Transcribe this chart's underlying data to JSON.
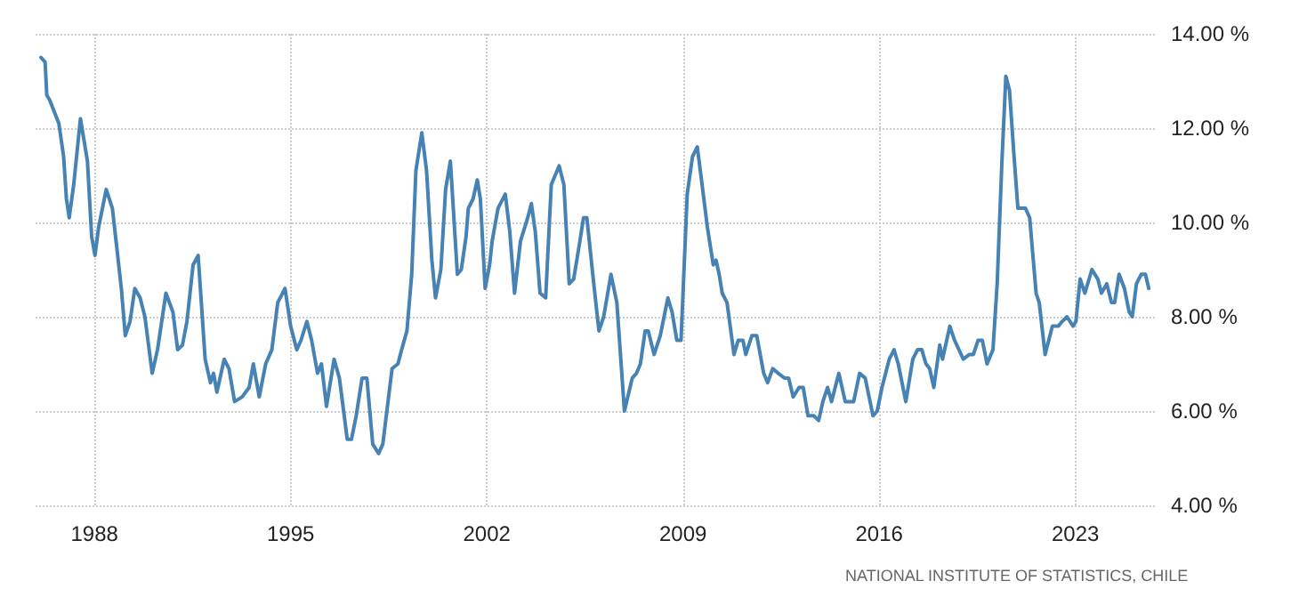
{
  "chart_data": {
    "type": "line",
    "x": [
      1986.09,
      1986.24,
      1986.3,
      1986.4,
      1986.73,
      1986.9,
      1987.0,
      1987.1,
      1987.26,
      1987.5,
      1987.75,
      1987.9,
      1988.02,
      1988.15,
      1988.42,
      1988.64,
      1988.96,
      1989.1,
      1989.27,
      1989.44,
      1989.63,
      1989.8,
      1990.06,
      1990.25,
      1990.55,
      1990.8,
      1990.97,
      1991.14,
      1991.3,
      1991.52,
      1991.7,
      1991.95,
      1992.14,
      1992.25,
      1992.37,
      1992.63,
      1992.8,
      1993.0,
      1993.27,
      1993.52,
      1993.67,
      1993.88,
      1994.11,
      1994.33,
      1994.54,
      1994.8,
      1995.0,
      1995.22,
      1995.37,
      1995.58,
      1995.75,
      1995.96,
      1996.1,
      1996.28,
      1996.55,
      1996.74,
      1997.02,
      1997.17,
      1997.34,
      1997.55,
      1997.72,
      1997.93,
      1998.14,
      1998.29,
      1998.62,
      1998.83,
      1998.96,
      1999.15,
      1999.32,
      1999.47,
      1999.68,
      1999.85,
      2000.04,
      2000.17,
      2000.36,
      2000.53,
      2000.7,
      2000.95,
      2001.09,
      2001.26,
      2001.34,
      2001.51,
      2001.66,
      2001.77,
      2001.94,
      2002.1,
      2002.19,
      2002.4,
      2002.66,
      2002.82,
      2002.99,
      2003.2,
      2003.46,
      2003.59,
      2003.73,
      2003.9,
      2004.1,
      2004.3,
      2004.58,
      2004.75,
      2004.94,
      2005.1,
      2005.32,
      2005.45,
      2005.57,
      2005.78,
      2006.0,
      2006.17,
      2006.43,
      2006.64,
      2006.91,
      2007.19,
      2007.34,
      2007.48,
      2007.65,
      2007.76,
      2007.97,
      2008.19,
      2008.46,
      2008.61,
      2008.78,
      2008.93,
      2009.15,
      2009.34,
      2009.51,
      2009.66,
      2009.87,
      2010.08,
      2010.18,
      2010.29,
      2010.4,
      2010.57,
      2010.82,
      2010.97,
      2011.14,
      2011.24,
      2011.46,
      2011.63,
      2011.88,
      2012.02,
      2012.2,
      2012.4,
      2012.62,
      2012.77,
      2012.93,
      2013.14,
      2013.29,
      2013.46,
      2013.67,
      2013.84,
      2013.99,
      2014.16,
      2014.3,
      2014.56,
      2014.79,
      2015.09,
      2015.3,
      2015.5,
      2015.78,
      2015.93,
      2016.1,
      2016.36,
      2016.53,
      2016.68,
      2016.95,
      2017.2,
      2017.37,
      2017.52,
      2017.67,
      2017.8,
      2017.95,
      2018.16,
      2018.26,
      2018.52,
      2018.69,
      2019.0,
      2019.22,
      2019.36,
      2019.53,
      2019.68,
      2019.85,
      2020.06,
      2020.21,
      2020.38,
      2020.52,
      2020.65,
      2020.8,
      2020.95,
      2021.12,
      2021.22,
      2021.37,
      2021.6,
      2021.71,
      2021.92,
      2022.18,
      2022.39,
      2022.53,
      2022.7,
      2022.92,
      2023.02,
      2023.17,
      2023.34,
      2023.59,
      2023.8,
      2023.93,
      2024.12,
      2024.29,
      2024.4,
      2024.56,
      2024.75,
      2024.92,
      2025.03,
      2025.18,
      2025.35,
      2025.5,
      2025.62
    ],
    "series": [
      {
        "color": "#4682b4",
        "values": [
          13.5,
          13.4,
          12.7,
          12.6,
          12.1,
          11.4,
          10.5,
          10.1,
          10.8,
          12.2,
          11.3,
          9.7,
          9.3,
          9.9,
          10.7,
          10.3,
          8.6,
          7.6,
          7.9,
          8.6,
          8.4,
          8.0,
          6.8,
          7.3,
          8.5,
          8.1,
          7.3,
          7.4,
          7.9,
          9.1,
          9.3,
          7.1,
          6.6,
          6.8,
          6.4,
          7.1,
          6.9,
          6.2,
          6.3,
          6.5,
          7.0,
          6.3,
          7.0,
          7.3,
          8.3,
          8.6,
          7.8,
          7.3,
          7.5,
          7.9,
          7.5,
          6.8,
          7.0,
          6.1,
          7.1,
          6.7,
          5.4,
          5.4,
          5.9,
          6.7,
          6.7,
          5.3,
          5.1,
          5.3,
          6.9,
          7.0,
          7.3,
          7.7,
          8.9,
          11.1,
          11.9,
          11.1,
          9.2,
          8.4,
          9.0,
          10.7,
          11.3,
          8.9,
          9.0,
          9.7,
          10.3,
          10.5,
          10.9,
          10.5,
          8.6,
          9.1,
          9.6,
          10.3,
          10.6,
          9.8,
          8.5,
          9.6,
          10.1,
          10.4,
          9.8,
          8.5,
          8.4,
          10.8,
          11.2,
          10.8,
          8.7,
          8.8,
          9.6,
          10.1,
          10.1,
          8.9,
          7.7,
          8.0,
          8.9,
          8.3,
          6.0,
          6.7,
          6.8,
          7.0,
          7.7,
          7.7,
          7.2,
          7.6,
          8.4,
          8.1,
          7.5,
          7.5,
          10.6,
          11.4,
          11.6,
          10.9,
          9.9,
          9.1,
          9.2,
          8.9,
          8.5,
          8.3,
          7.2,
          7.5,
          7.5,
          7.2,
          7.6,
          7.6,
          6.8,
          6.6,
          6.9,
          6.8,
          6.7,
          6.7,
          6.3,
          6.5,
          6.5,
          5.9,
          5.9,
          5.8,
          6.2,
          6.5,
          6.2,
          6.8,
          6.2,
          6.2,
          6.8,
          6.7,
          5.9,
          6.0,
          6.5,
          7.1,
          7.3,
          7.0,
          6.2,
          7.1,
          7.3,
          7.3,
          7.0,
          6.9,
          6.5,
          7.4,
          7.1,
          7.8,
          7.5,
          7.1,
          7.2,
          7.2,
          7.5,
          7.5,
          7.0,
          7.3,
          8.7,
          11.3,
          13.1,
          12.8,
          11.5,
          10.3,
          10.3,
          10.3,
          10.1,
          8.5,
          8.3,
          7.2,
          7.8,
          7.8,
          7.9,
          8.0,
          7.8,
          7.9,
          8.8,
          8.5,
          9.0,
          8.8,
          8.5,
          8.7,
          8.3,
          8.3,
          8.9,
          8.6,
          8.1,
          8.0,
          8.7,
          8.9,
          8.9,
          8.6
        ]
      }
    ],
    "xlim": [
      1985.9,
      2025.9
    ],
    "xticks": [
      1988,
      1995,
      2002,
      2009,
      2016,
      2023
    ],
    "ylim": [
      4,
      14
    ],
    "yticks": [
      {
        "value": 4,
        "label": "4.00 %"
      },
      {
        "value": 6,
        "label": "6.00 %"
      },
      {
        "value": 8,
        "label": "8.00 %"
      },
      {
        "value": 10,
        "label": "10.00 %"
      },
      {
        "value": 12,
        "label": "12.00 %"
      },
      {
        "value": 14,
        "label": "14.00 %"
      }
    ],
    "grid": true,
    "line_style": "solid",
    "marker": "none",
    "annotations": [
      "NATIONAL INSTITUTE OF STATISTICS, CHILE"
    ]
  }
}
